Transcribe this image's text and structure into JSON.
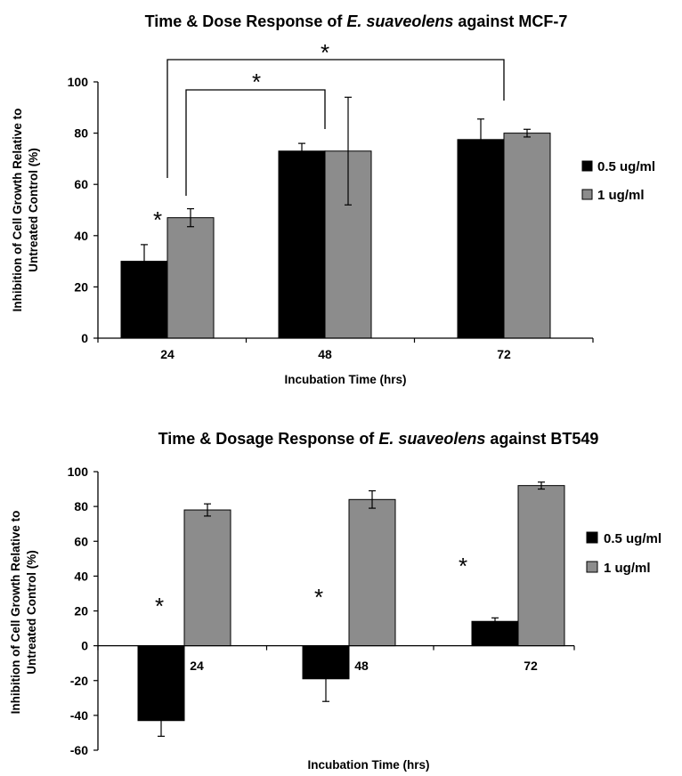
{
  "chart_data": [
    {
      "type": "bar",
      "title_prefix": "Time & Dose Response of ",
      "title_italic": "E. suaveolens",
      "title_suffix": " against MCF-7",
      "xlabel": "Incubation Time (hrs)",
      "ylabel_line1": "Inhibition  of Cell Growth Relative to",
      "ylabel_line2": "Untreated Control (%)",
      "categories": [
        "24",
        "48",
        "72"
      ],
      "ylim": [
        0,
        100
      ],
      "yticks": [
        "0",
        "20",
        "40",
        "60",
        "80",
        "100"
      ],
      "series": [
        {
          "name": "0.5 ug/ml",
          "color": "#000000",
          "values": [
            30,
            73,
            77.5
          ],
          "errors": [
            6.5,
            3,
            8
          ]
        },
        {
          "name": "1 ug/ml",
          "color": "#8c8c8c",
          "values": [
            47,
            73,
            80
          ],
          "errors": [
            3.5,
            21,
            1.5
          ]
        }
      ],
      "annotations": [
        "*",
        "*",
        "*"
      ],
      "legend_position": "right",
      "grid": false
    },
    {
      "type": "bar",
      "title_prefix": "Time & Dosage Response of ",
      "title_italic": "E. suaveolens",
      "title_suffix": " against BT549",
      "xlabel": "Incubation Time (hrs)",
      "ylabel_line1": "Inhibition of Cell Growth Relative to",
      "ylabel_line2": "Untreated Control (%)",
      "categories": [
        "24",
        "48",
        "72"
      ],
      "ylim": [
        -60,
        100
      ],
      "yticks": [
        "-60",
        "-40",
        "-20",
        "0",
        "20",
        "40",
        "60",
        "80",
        "100"
      ],
      "series": [
        {
          "name": "0.5 ug/ml",
          "color": "#000000",
          "values": [
            -43,
            -19,
            14
          ],
          "errors": [
            9,
            13,
            2
          ]
        },
        {
          "name": "1 ug/ml",
          "color": "#8c8c8c",
          "values": [
            78,
            84,
            92
          ],
          "errors": [
            3.5,
            5,
            2
          ]
        }
      ],
      "annotations": [
        "*",
        "*",
        "*"
      ],
      "legend_position": "right",
      "grid": false
    }
  ]
}
